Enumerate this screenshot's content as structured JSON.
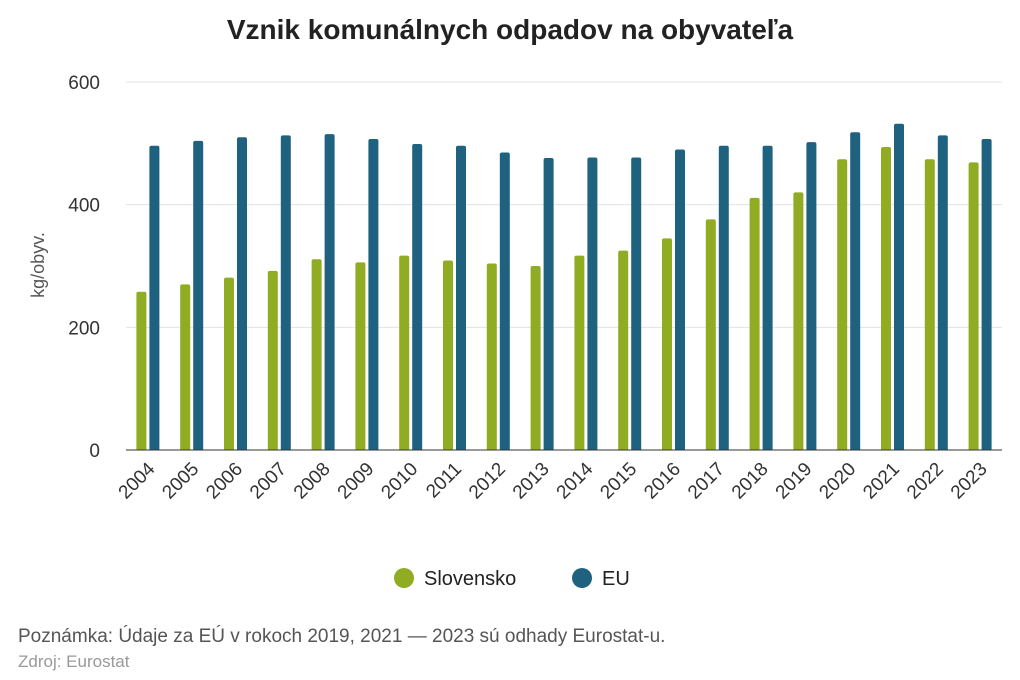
{
  "chart_data": {
    "type": "bar",
    "title": "Vznik komunálnych odpadov na obyvateľa",
    "xlabel": "",
    "ylabel": "kg/obyv.",
    "ylim": [
      0,
      600
    ],
    "yticks": [
      0,
      200,
      400,
      600
    ],
    "grid": true,
    "legend_position": "bottom-center",
    "categories": [
      "2004",
      "2005",
      "2006",
      "2007",
      "2008",
      "2009",
      "2010",
      "2011",
      "2012",
      "2013",
      "2014",
      "2015",
      "2016",
      "2017",
      "2018",
      "2019",
      "2020",
      "2021",
      "2022",
      "2023"
    ],
    "series": [
      {
        "name": "Slovensko",
        "color": "#8fac23",
        "values": [
          258,
          270,
          281,
          292,
          311,
          306,
          317,
          309,
          304,
          300,
          317,
          325,
          345,
          376,
          411,
          420,
          474,
          494,
          474,
          469
        ]
      },
      {
        "name": "EU",
        "color": "#1f6280",
        "values": [
          496,
          504,
          510,
          513,
          515,
          507,
          499,
          496,
          485,
          476,
          477,
          477,
          490,
          496,
          496,
          502,
          518,
          532,
          513,
          507
        ]
      }
    ]
  },
  "footer": {
    "note": "Poznámka: Údaje za EÚ v rokoch 2019, 2021 — 2023 sú odhady Eurostat-u.",
    "source": "Zdroj: Eurostat"
  }
}
